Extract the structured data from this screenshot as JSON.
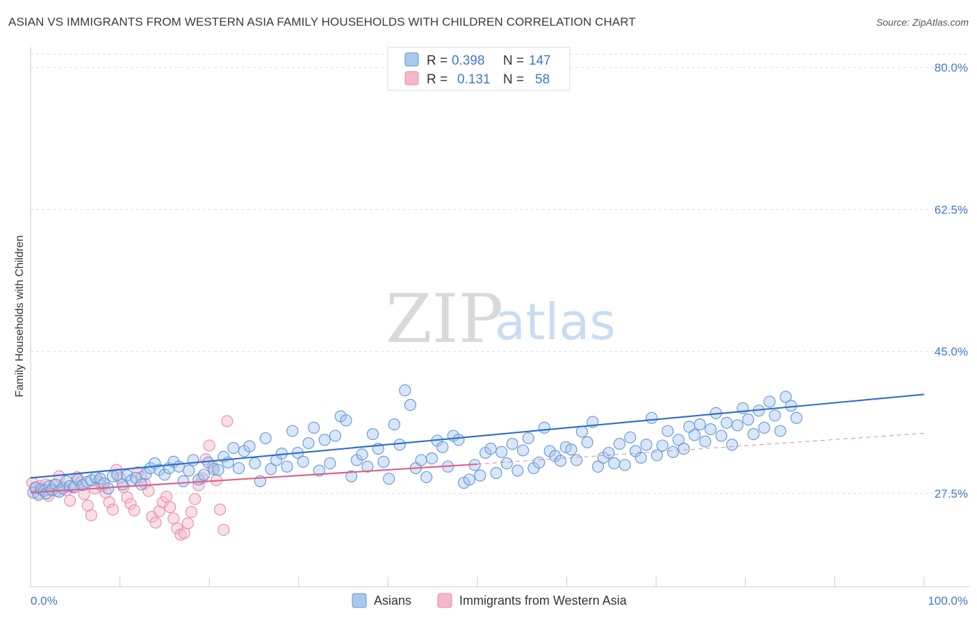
{
  "header": {
    "title": "ASIAN VS IMMIGRANTS FROM WESTERN ASIA FAMILY HOUSEHOLDS WITH CHILDREN CORRELATION CHART",
    "source": "Source: ZipAtlas.com"
  },
  "watermark": {
    "part1": "ZIP",
    "part2": "atlas"
  },
  "legend_top": {
    "rows": [
      {
        "r_label": "R =",
        "r_value": "0.398",
        "n_label": "N =",
        "n_value": "147",
        "color": "#a9c8ee"
      },
      {
        "r_label": "R =",
        "r_value": "0.131",
        "n_label": "N =",
        "n_value": "58",
        "color": "#f4b8cb"
      }
    ]
  },
  "colors": {
    "blue_fill": "#a9c8ee",
    "blue_stroke": "#5f95d8",
    "blue_line": "#2f6fcc",
    "pink_fill": "#f4b8cb",
    "pink_stroke": "#e58aa8",
    "pink_line": "#e0608a",
    "grid": "#dddddd",
    "tick_text": "#3f78c9"
  },
  "chart_data": {
    "type": "scatter",
    "title": "ASIAN VS IMMIGRANTS FROM WESTERN ASIA FAMILY HOUSEHOLDS WITH CHILDREN CORRELATION CHART",
    "xlabel": "",
    "ylabel": "Family Households with Children",
    "xlim": [
      0,
      100
    ],
    "ylim": [
      16,
      82.5
    ],
    "x_tick_labels": [
      "0.0%",
      "100.0%"
    ],
    "y_ticks": [
      27.5,
      45.0,
      62.5,
      80.0
    ],
    "y_tick_labels": [
      "27.5%",
      "45.0%",
      "62.5%",
      "80.0%"
    ],
    "grid": true,
    "legend_placement": "top-center",
    "series": [
      {
        "name": "Asians",
        "color": "#a9c8ee",
        "trend": {
          "x": [
            0,
            100
          ],
          "y": [
            29.4,
            39.7
          ],
          "style": "solid"
        },
        "points": [
          [
            0.3,
            27.6
          ],
          [
            0.6,
            28.2
          ],
          [
            0.9,
            27.3
          ],
          [
            1.2,
            28.0
          ],
          [
            1.5,
            27.8
          ],
          [
            1.8,
            27.5
          ],
          [
            2.1,
            28.4
          ],
          [
            2.4,
            27.9
          ],
          [
            2.8,
            28.6
          ],
          [
            3.2,
            27.7
          ],
          [
            3.6,
            28.1
          ],
          [
            4.0,
            29.0
          ],
          [
            4.4,
            28.4
          ],
          [
            4.9,
            28.3
          ],
          [
            5.3,
            29.2
          ],
          [
            5.8,
            28.5
          ],
          [
            6.3,
            28.9
          ],
          [
            6.8,
            29.1
          ],
          [
            7.3,
            29.5
          ],
          [
            7.8,
            29.3
          ],
          [
            8.2,
            28.7
          ],
          [
            8.7,
            28.1
          ],
          [
            9.2,
            29.6
          ],
          [
            9.7,
            29.8
          ],
          [
            10.3,
            28.6
          ],
          [
            10.8,
            29.7
          ],
          [
            11.3,
            29.1
          ],
          [
            11.8,
            29.4
          ],
          [
            12.4,
            28.6
          ],
          [
            12.9,
            29.9
          ],
          [
            13.4,
            30.6
          ],
          [
            13.9,
            31.2
          ],
          [
            14.4,
            30.4
          ],
          [
            15.0,
            29.8
          ],
          [
            15.5,
            30.6
          ],
          [
            16.0,
            31.4
          ],
          [
            16.6,
            30.8
          ],
          [
            17.1,
            29.0
          ],
          [
            17.7,
            30.3
          ],
          [
            18.2,
            31.6
          ],
          [
            18.8,
            29.2
          ],
          [
            19.4,
            29.8
          ],
          [
            19.9,
            31.3
          ],
          [
            20.5,
            30.5
          ],
          [
            21.0,
            30.4
          ],
          [
            21.6,
            32.0
          ],
          [
            22.1,
            31.3
          ],
          [
            22.7,
            33.1
          ],
          [
            23.3,
            30.6
          ],
          [
            23.9,
            32.7
          ],
          [
            24.5,
            33.3
          ],
          [
            25.1,
            31.2
          ],
          [
            25.7,
            29.0
          ],
          [
            26.3,
            34.3
          ],
          [
            26.9,
            30.5
          ],
          [
            27.5,
            31.6
          ],
          [
            28.1,
            32.4
          ],
          [
            28.7,
            30.8
          ],
          [
            29.3,
            35.2
          ],
          [
            29.9,
            32.5
          ],
          [
            30.5,
            31.4
          ],
          [
            31.1,
            33.7
          ],
          [
            31.7,
            35.6
          ],
          [
            32.3,
            30.3
          ],
          [
            32.9,
            34.1
          ],
          [
            33.5,
            31.2
          ],
          [
            34.1,
            34.6
          ],
          [
            34.7,
            37.0
          ],
          [
            35.3,
            36.5
          ],
          [
            35.9,
            29.6
          ],
          [
            36.5,
            31.6
          ],
          [
            37.1,
            32.3
          ],
          [
            37.7,
            30.8
          ],
          [
            38.3,
            34.8
          ],
          [
            38.9,
            33.0
          ],
          [
            39.5,
            31.4
          ],
          [
            40.1,
            29.3
          ],
          [
            40.7,
            36.0
          ],
          [
            41.3,
            33.5
          ],
          [
            41.9,
            40.2
          ],
          [
            42.5,
            38.4
          ],
          [
            43.1,
            30.6
          ],
          [
            43.7,
            31.6
          ],
          [
            44.3,
            29.5
          ],
          [
            44.9,
            31.8
          ],
          [
            45.5,
            34.0
          ],
          [
            46.1,
            33.2
          ],
          [
            46.7,
            30.8
          ],
          [
            47.3,
            34.6
          ],
          [
            47.9,
            34.1
          ],
          [
            48.5,
            28.8
          ],
          [
            49.1,
            29.2
          ],
          [
            49.7,
            31.0
          ],
          [
            50.3,
            29.7
          ],
          [
            50.9,
            32.5
          ],
          [
            51.5,
            33.0
          ],
          [
            52.1,
            30.0
          ],
          [
            52.7,
            32.6
          ],
          [
            53.3,
            31.2
          ],
          [
            53.9,
            33.6
          ],
          [
            54.5,
            30.3
          ],
          [
            55.1,
            32.8
          ],
          [
            55.7,
            34.3
          ],
          [
            56.3,
            30.6
          ],
          [
            56.9,
            31.3
          ],
          [
            57.5,
            35.6
          ],
          [
            58.1,
            32.7
          ],
          [
            58.7,
            32.1
          ],
          [
            59.3,
            31.5
          ],
          [
            59.9,
            33.2
          ],
          [
            60.5,
            32.9
          ],
          [
            61.1,
            31.6
          ],
          [
            61.7,
            35.1
          ],
          [
            62.3,
            33.8
          ],
          [
            62.9,
            36.3
          ],
          [
            63.5,
            30.8
          ],
          [
            64.1,
            31.9
          ],
          [
            64.7,
            32.5
          ],
          [
            65.3,
            31.2
          ],
          [
            65.9,
            33.6
          ],
          [
            66.5,
            31.0
          ],
          [
            67.1,
            34.4
          ],
          [
            67.7,
            32.7
          ],
          [
            68.3,
            31.9
          ],
          [
            68.9,
            33.5
          ],
          [
            69.5,
            36.8
          ],
          [
            70.1,
            32.2
          ],
          [
            70.7,
            33.4
          ],
          [
            71.3,
            35.2
          ],
          [
            71.9,
            32.6
          ],
          [
            72.5,
            34.1
          ],
          [
            73.1,
            33.0
          ],
          [
            73.7,
            35.7
          ],
          [
            74.3,
            34.7
          ],
          [
            74.9,
            36.0
          ],
          [
            75.5,
            33.9
          ],
          [
            76.1,
            35.4
          ],
          [
            76.7,
            37.4
          ],
          [
            77.3,
            34.6
          ],
          [
            77.9,
            36.2
          ],
          [
            78.5,
            33.5
          ],
          [
            79.1,
            35.9
          ],
          [
            79.7,
            38.0
          ],
          [
            80.3,
            36.6
          ],
          [
            80.9,
            34.8
          ],
          [
            81.5,
            37.7
          ],
          [
            82.1,
            35.6
          ],
          [
            82.7,
            38.8
          ],
          [
            83.3,
            37.1
          ],
          [
            83.9,
            35.2
          ],
          [
            84.5,
            39.4
          ],
          [
            85.1,
            38.3
          ],
          [
            85.7,
            36.8
          ]
        ]
      },
      {
        "name": "Immigrants from Western Asia",
        "color": "#f4b8cb",
        "trend": {
          "x": [
            0,
            50
          ],
          "y": [
            27.6,
            31.1
          ],
          "style": "solid",
          "extension": {
            "x": [
              50,
              100
            ],
            "y": [
              31.1,
              34.9
            ],
            "style": "dashed"
          }
        },
        "points": [
          [
            0.2,
            28.8
          ],
          [
            0.5,
            28.2
          ],
          [
            0.8,
            27.5
          ],
          [
            1.1,
            28.4
          ],
          [
            1.4,
            27.9
          ],
          [
            1.7,
            28.6
          ],
          [
            2.0,
            27.2
          ],
          [
            2.3,
            28.1
          ],
          [
            2.6,
            28.5
          ],
          [
            2.9,
            27.8
          ],
          [
            3.2,
            29.6
          ],
          [
            3.6,
            28.3
          ],
          [
            4.0,
            27.9
          ],
          [
            4.4,
            26.6
          ],
          [
            4.8,
            28.2
          ],
          [
            5.2,
            29.5
          ],
          [
            5.6,
            28.9
          ],
          [
            6.0,
            27.4
          ],
          [
            6.4,
            26.0
          ],
          [
            6.8,
            24.8
          ],
          [
            7.2,
            28.1
          ],
          [
            7.6,
            29.0
          ],
          [
            8.0,
            28.4
          ],
          [
            8.4,
            27.6
          ],
          [
            8.8,
            26.4
          ],
          [
            9.2,
            25.5
          ],
          [
            9.6,
            30.4
          ],
          [
            10.0,
            29.4
          ],
          [
            10.4,
            28.3
          ],
          [
            10.8,
            27.0
          ],
          [
            11.2,
            26.2
          ],
          [
            11.6,
            25.4
          ],
          [
            12.0,
            30.1
          ],
          [
            12.4,
            29.5
          ],
          [
            12.8,
            28.7
          ],
          [
            13.2,
            27.8
          ],
          [
            13.6,
            24.6
          ],
          [
            14.0,
            23.9
          ],
          [
            14.4,
            25.3
          ],
          [
            14.8,
            26.4
          ],
          [
            15.2,
            27.1
          ],
          [
            15.6,
            25.8
          ],
          [
            16.0,
            24.4
          ],
          [
            16.4,
            23.2
          ],
          [
            16.8,
            22.4
          ],
          [
            17.2,
            22.6
          ],
          [
            17.6,
            23.8
          ],
          [
            18.0,
            25.2
          ],
          [
            18.4,
            26.8
          ],
          [
            18.8,
            28.5
          ],
          [
            19.2,
            29.4
          ],
          [
            19.6,
            31.7
          ],
          [
            20.0,
            33.4
          ],
          [
            20.4,
            30.8
          ],
          [
            20.8,
            29.1
          ],
          [
            21.2,
            25.5
          ],
          [
            21.6,
            23.0
          ],
          [
            22.0,
            36.4
          ]
        ]
      }
    ]
  },
  "bottom_legend": {
    "items": [
      {
        "label": "Asians",
        "color": "#a9c8ee"
      },
      {
        "label": "Immigrants from Western Asia",
        "color": "#f4b8cb"
      }
    ]
  }
}
